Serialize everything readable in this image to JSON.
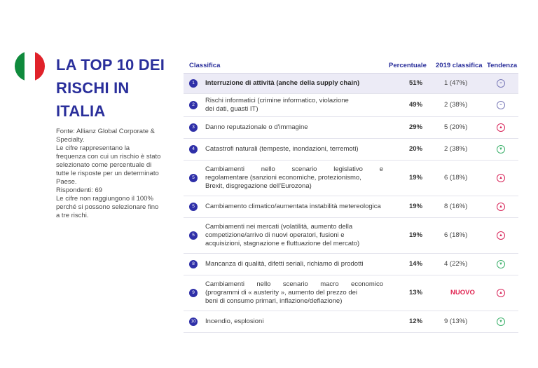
{
  "title_lines": [
    "LA TOP 10 DEI",
    "RISCHI IN",
    "ITALIA"
  ],
  "source_lines": [
    "Fonte: Allianz Global Corporate &",
    "Specialty.",
    "Le cifre rappresentano la",
    "frequenza con cui un rischio è stato",
    "selezionato come percentuale di",
    "tutte le risposte per un determinato",
    "Paese.",
    "Rispondenti: 69",
    "Le cifre non raggiungono il 100%",
    "perché si possono selezionare fino",
    "a tre rischi."
  ],
  "table": {
    "headers": {
      "classifica": "Classifica",
      "percentuale": "Percentuale",
      "classifica_2019": "2019 classifica",
      "tendenza": "Tendenza"
    },
    "rows": [
      {
        "rank": "1",
        "risk": [
          "Interruzione di attività (anche della supply chain)"
        ],
        "pct": "51%",
        "prev": "1 (47%)",
        "trend": "flat",
        "trend_icon": "equal-icon"
      },
      {
        "rank": "2",
        "risk": [
          "Rischi informatici (crimine informatico, violazione",
          "dei dati, guasti IT)"
        ],
        "pct": "49%",
        "prev": "2 (38%)",
        "trend": "flat",
        "trend_icon": "equal-icon"
      },
      {
        "rank": "3",
        "risk": [
          "Danno reputazionale o d'immagine"
        ],
        "pct": "29%",
        "prev": "5 (20%)",
        "trend": "up",
        "trend_icon": "arrow-up-icon"
      },
      {
        "rank": "4",
        "risk": [
          "Catastrofi naturali (tempeste, inondazioni, terremoti)"
        ],
        "pct": "20%",
        "prev": "2 (38%)",
        "trend": "down",
        "trend_icon": "arrow-down-icon"
      },
      {
        "rank": "5",
        "risk": [
          "Cambiamenti nello scenario legislativo e",
          "regolamentare (sanzioni economiche, protezionismo,",
          "Brexit, disgregazione dell'Eurozona)"
        ],
        "pct": "19%",
        "prev": "6 (18%)",
        "trend": "up",
        "trend_icon": "arrow-up-icon"
      },
      {
        "rank": "5",
        "risk": [
          "Cambiamento climatico/aumentata instabilità metereologica"
        ],
        "pct": "19%",
        "prev": "8 (16%)",
        "trend": "up",
        "trend_icon": "arrow-up-icon"
      },
      {
        "rank": "5",
        "risk": [
          "Cambiamenti nei mercati (volatilità, aumento della",
          "competizione/arrivo di nuovi operatori, fusioni e",
          "acquisizioni, stagnazione e fluttuazione del mercato)"
        ],
        "pct": "19%",
        "prev": "6 (18%)",
        "trend": "up",
        "trend_icon": "arrow-up-icon"
      },
      {
        "rank": "8",
        "risk": [
          "Mancanza di qualità, difetti seriali, richiamo di prodotti"
        ],
        "pct": "14%",
        "prev": "4 (22%)",
        "trend": "down",
        "trend_icon": "arrow-down-icon"
      },
      {
        "rank": "9",
        "risk": [
          "Cambiamenti nello scenario macro economico",
          "(programmi di « austerity », aumento del prezzo dei",
          "beni di consumo primari, inflazione/deflazione)"
        ],
        "pct": "13%",
        "prev": "NUOVO",
        "trend": "up",
        "trend_icon": "arrow-up-icon"
      },
      {
        "rank": "10",
        "risk": [
          "Incendio, esplosioni"
        ],
        "pct": "12%",
        "prev": "9 (13%)",
        "trend": "down",
        "trend_icon": "arrow-down-icon"
      }
    ]
  }
}
